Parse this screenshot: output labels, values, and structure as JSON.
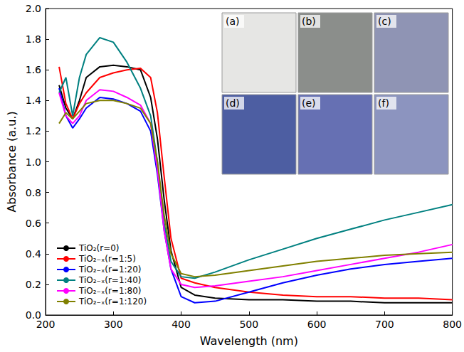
{
  "chart_data": {
    "type": "line",
    "xlabel": "Wavelength (nm)",
    "ylabel": "Absorbance (a.u.)",
    "x": [
      220,
      230,
      240,
      250,
      260,
      280,
      300,
      320,
      340,
      355,
      365,
      375,
      385,
      400,
      420,
      450,
      500,
      550,
      600,
      650,
      700,
      750,
      800
    ],
    "series": [
      {
        "name": "TiO₂(r=0)",
        "color": "#000000",
        "values": [
          1.5,
          1.35,
          1.28,
          1.4,
          1.55,
          1.62,
          1.63,
          1.62,
          1.6,
          1.42,
          1.15,
          0.75,
          0.42,
          0.18,
          0.13,
          0.11,
          0.1,
          0.1,
          0.09,
          0.09,
          0.08,
          0.08,
          0.08
        ]
      },
      {
        "name": "TiO₂₋ₓ(r=1:5)",
        "color": "#ff0000",
        "values": [
          1.62,
          1.38,
          1.28,
          1.38,
          1.45,
          1.55,
          1.58,
          1.6,
          1.61,
          1.55,
          1.32,
          0.9,
          0.5,
          0.24,
          0.21,
          0.18,
          0.15,
          0.13,
          0.12,
          0.12,
          0.11,
          0.11,
          0.1
        ]
      },
      {
        "name": "TiO₂₋ₓ(r=1:20)",
        "color": "#0000ff",
        "values": [
          1.48,
          1.3,
          1.22,
          1.28,
          1.35,
          1.42,
          1.41,
          1.38,
          1.33,
          1.2,
          0.92,
          0.55,
          0.3,
          0.12,
          0.08,
          0.09,
          0.15,
          0.21,
          0.26,
          0.3,
          0.33,
          0.35,
          0.37
        ]
      },
      {
        "name": "TiO₂₋ₓ(r=1:40)",
        "color": "#008080",
        "values": [
          1.45,
          1.55,
          1.3,
          1.55,
          1.7,
          1.81,
          1.78,
          1.65,
          1.48,
          1.3,
          1.0,
          0.6,
          0.35,
          0.25,
          0.24,
          0.28,
          0.36,
          0.43,
          0.5,
          0.56,
          0.62,
          0.67,
          0.72
        ]
      },
      {
        "name": "TiO₂₋ₓ(r=1:80)",
        "color": "#ff00ff",
        "values": [
          1.45,
          1.3,
          1.25,
          1.3,
          1.4,
          1.47,
          1.46,
          1.42,
          1.37,
          1.25,
          0.95,
          0.55,
          0.3,
          0.2,
          0.18,
          0.19,
          0.22,
          0.25,
          0.29,
          0.33,
          0.37,
          0.41,
          0.46
        ]
      },
      {
        "name": "TiO₂₋ₓ(r=1:120)",
        "color": "#808000",
        "values": [
          1.25,
          1.32,
          1.28,
          1.33,
          1.38,
          1.4,
          1.4,
          1.38,
          1.35,
          1.25,
          1.0,
          0.65,
          0.4,
          0.27,
          0.25,
          0.26,
          0.29,
          0.32,
          0.35,
          0.37,
          0.39,
          0.4,
          0.41
        ]
      }
    ],
    "xlim": [
      200,
      800
    ],
    "xticks": [
      200,
      300,
      400,
      500,
      600,
      700,
      800
    ],
    "ylim": [
      0,
      2.0
    ],
    "yticks": [
      {
        "value": 0,
        "label": "0.0"
      },
      0.2,
      0.4,
      0.6,
      0.8,
      {
        "value": 1.0,
        "label": "1.0"
      },
      1.2,
      1.4,
      1.6,
      1.8,
      {
        "value": 2.0,
        "label": "2.0"
      }
    ],
    "marker": "none",
    "grid": false,
    "legend": "bottom-left",
    "annotations": [
      "(a)",
      "(b)",
      "(c)",
      "(d)",
      "(e)",
      "(f)"
    ]
  }
}
